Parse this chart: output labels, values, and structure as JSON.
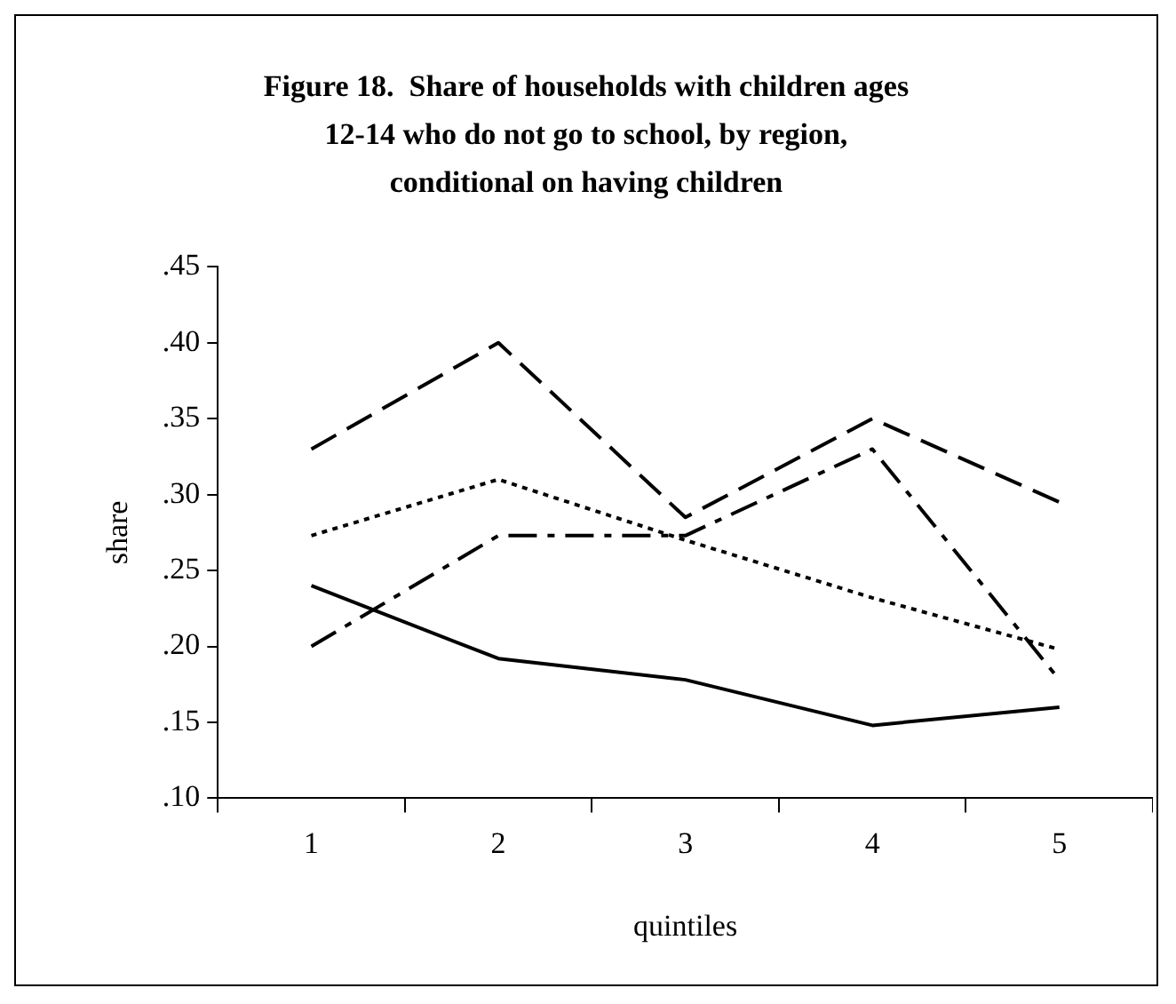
{
  "chart_data": {
    "type": "line",
    "title": "Figure 18.  Share of households with children ages 12-14 who do not go to school, by region, conditional on having children",
    "xlabel": "quintiles",
    "ylabel": "share",
    "categories": [
      "1",
      "2",
      "3",
      "4",
      "5"
    ],
    "series": [
      {
        "color": "#000000",
        "line_style": "solid",
        "values": [
          0.24,
          0.192,
          0.178,
          0.148,
          0.16
        ]
      },
      {
        "color": "#000000",
        "line_style": "dashed",
        "values": [
          0.33,
          0.4,
          0.285,
          0.35,
          0.295
        ]
      },
      {
        "color": "#000000",
        "line_style": "dotted",
        "values": [
          0.273,
          0.31,
          0.27,
          0.232,
          0.198
        ]
      },
      {
        "color": "#000000",
        "line_style": "dashdot",
        "values": [
          0.2,
          0.273,
          0.273,
          0.33,
          0.178
        ]
      }
    ],
    "ylim": [
      0.1,
      0.45
    ],
    "yticks": [
      {
        "value": 0.1,
        "label": ".10"
      },
      {
        "value": 0.15,
        "label": ".15"
      },
      {
        "value": 0.2,
        "label": ".20"
      },
      {
        "value": 0.25,
        "label": ".25"
      },
      {
        "value": 0.3,
        "label": ".30"
      },
      {
        "value": 0.35,
        "label": ".35"
      },
      {
        "value": 0.4,
        "label": ".40"
      },
      {
        "value": 0.45,
        "label": ".45"
      }
    ],
    "grid": false,
    "legend": false,
    "marker": "none"
  }
}
